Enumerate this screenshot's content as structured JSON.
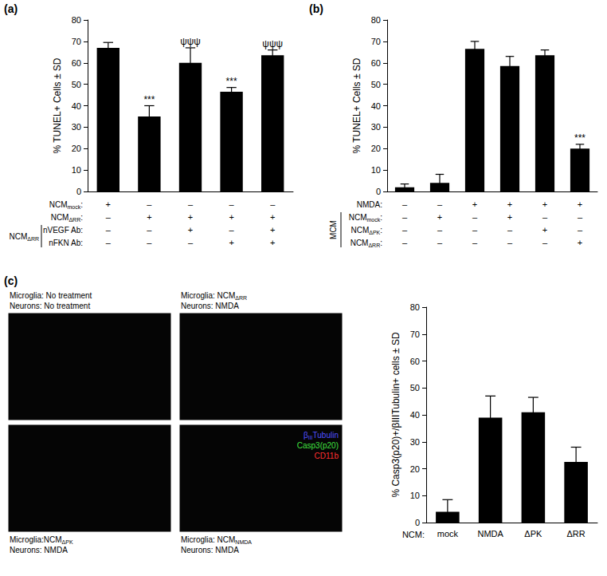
{
  "chart_data": [
    {
      "panel": "(a)",
      "type": "bar",
      "color": "#000000",
      "y_label": "% TUNEL+ Cells ± SD",
      "categories": [
        null,
        null,
        null,
        null,
        null
      ],
      "values": [
        67,
        35,
        60,
        46.5,
        63.5
      ],
      "errors": [
        2.5,
        5,
        7,
        2,
        2.5
      ],
      "annotations": [
        null,
        "***",
        "ψψψ",
        "***",
        "ψψψ"
      ],
      "ylim": [
        0,
        80
      ],
      "yticks": [
        0,
        10,
        20,
        30,
        40,
        50,
        60,
        70,
        80
      ],
      "grid": false,
      "condition_table": [
        {
          "label": {
            "main": "NCM",
            "sub": "mock",
            "tail": ":"
          },
          "cells": [
            "+",
            "–",
            "–",
            "–",
            "–"
          ]
        },
        {
          "label": {
            "main": "NCM",
            "sub": "ΔRR",
            "tail": ":"
          },
          "cells": [
            "–",
            "+",
            "+",
            "+",
            "+"
          ]
        },
        {
          "group": {
            "main": "NCM",
            "sub": "ΔRR"
          },
          "label": "nVEGF Ab:",
          "cells": [
            "–",
            "–",
            "+",
            "–",
            "+"
          ]
        },
        {
          "group": {
            "main": "NCM",
            "sub": "ΔRR"
          },
          "label": "nFKN Ab:",
          "cells": [
            "–",
            "–",
            "–",
            "+",
            "+"
          ]
        }
      ]
    },
    {
      "panel": "(b)",
      "type": "bar",
      "color": "#000000",
      "y_label": "% TUNEL+ Cells ± SD",
      "categories": [
        null,
        null,
        null,
        null,
        null,
        null
      ],
      "values": [
        2,
        4,
        66.5,
        58.5,
        63.5,
        20
      ],
      "errors": [
        1.5,
        4,
        3.5,
        4.5,
        2.5,
        2
      ],
      "annotations": [
        null,
        null,
        null,
        null,
        null,
        "***"
      ],
      "ylim": [
        0,
        80
      ],
      "yticks": [
        0,
        10,
        20,
        30,
        40,
        50,
        60,
        70,
        80
      ],
      "grid": false,
      "condition_table": [
        {
          "label": "NMDA:",
          "cells": [
            "–",
            "–",
            "+",
            "+",
            "+",
            "+"
          ]
        },
        {
          "group": "MCM",
          "label": {
            "main": "NCM",
            "sub": "mock",
            "tail": ":"
          },
          "cells": [
            "–",
            "+",
            "–",
            "+",
            "–",
            "–"
          ]
        },
        {
          "group": "MCM",
          "label": {
            "main": "NCM",
            "sub": "ΔPK",
            "tail": ":"
          },
          "cells": [
            "–",
            "–",
            "–",
            "–",
            "+",
            "–"
          ]
        },
        {
          "group": "MCM",
          "label": {
            "main": "NCM",
            "sub": "ΔRR",
            "tail": ":"
          },
          "cells": [
            "–",
            "–",
            "–",
            "–",
            "–",
            "+"
          ]
        }
      ]
    },
    {
      "panel": "(c)",
      "type": "bar",
      "color": "#000000",
      "y_label": "% Casp3(p20)+/βIIITubulin+ cells ± SD",
      "x_label": "NCM:",
      "categories": [
        "mock",
        "NMDA",
        "ΔPK",
        "ΔRR"
      ],
      "values": [
        4,
        39,
        41,
        22.5
      ],
      "errors": [
        4.5,
        8,
        5.5,
        5.5
      ],
      "ylim": [
        0,
        80
      ],
      "yticks": [
        0,
        10,
        20,
        30,
        40,
        50,
        60,
        70,
        80
      ],
      "grid": false
    }
  ],
  "micrographs": {
    "panels": [
      {
        "captions": [
          "Microglia: No treatment",
          "Neurons: No treatment"
        ]
      },
      {
        "captions": [
          {
            "main": "Microglia: NCM",
            "sub": "ΔRR"
          },
          "Neurons: NMDA"
        ]
      },
      {
        "captions": [
          {
            "main": "Microglia:NCM",
            "sub": "ΔPK"
          },
          "Neurons: NMDA"
        ]
      },
      {
        "captions": [
          {
            "main": "Microglia: NCM",
            "sub": "NMDA"
          },
          "Neurons: NMDA"
        ]
      }
    ],
    "stain_legend": [
      {
        "name": {
          "main": "β",
          "sub": "III",
          "tail": "Tubulin"
        },
        "color": "#5050ff"
      },
      {
        "name": "Casp3(p20)",
        "color": "#40e040"
      },
      {
        "name": "CD11b",
        "color": "#ff3030"
      }
    ]
  }
}
